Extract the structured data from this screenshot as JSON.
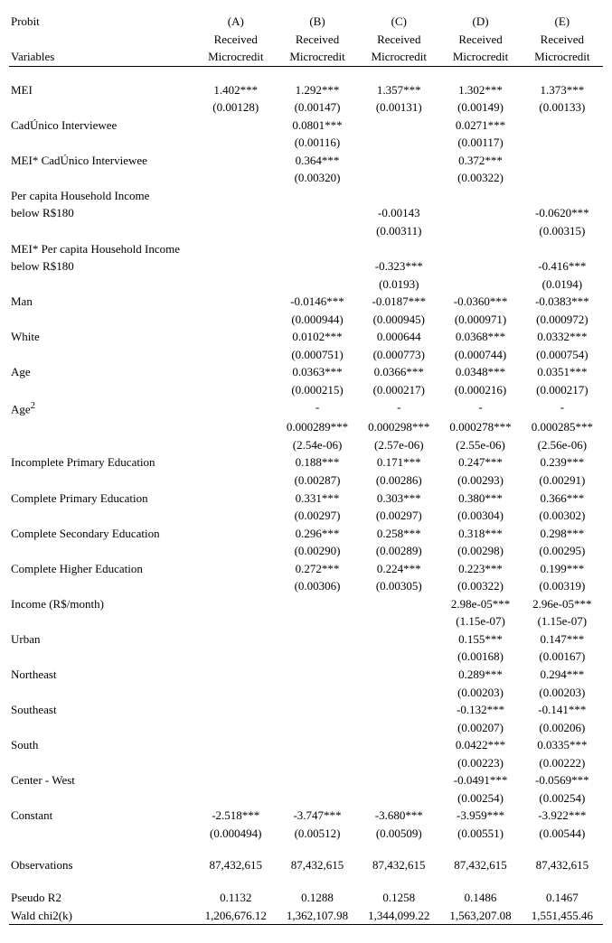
{
  "header": {
    "row1_label": "Probit",
    "row2_label": "Variables",
    "cols": [
      {
        "col_id": "(A)",
        "sub": "Received",
        "sub2": "Microcredit"
      },
      {
        "col_id": "(B)",
        "sub": "Received",
        "sub2": "Microcredit"
      },
      {
        "col_id": "(C)",
        "sub": "Received",
        "sub2": "Microcredit"
      },
      {
        "col_id": "(D)",
        "sub": "Received",
        "sub2": "Microcredit"
      },
      {
        "col_id": "(E)",
        "sub": "Received",
        "sub2": "Microcredit"
      }
    ]
  },
  "rows": [
    {
      "type": "spacer"
    },
    {
      "type": "est",
      "label": "MEI",
      "vals": [
        "1.402***",
        "1.292***",
        "1.357***",
        "1.302***",
        "1.373***"
      ]
    },
    {
      "type": "se",
      "vals": [
        "(0.00128)",
        "(0.00147)",
        "(0.00131)",
        "(0.00149)",
        "(0.00133)"
      ]
    },
    {
      "type": "est",
      "label": "CadÚnico Interviewee",
      "vals": [
        "",
        "0.0801***",
        "",
        "0.0271***",
        ""
      ]
    },
    {
      "type": "se",
      "vals": [
        "",
        "(0.00116)",
        "",
        "(0.00117)",
        ""
      ]
    },
    {
      "type": "est",
      "label": "MEI* CadÚnico Interviewee",
      "vals": [
        "",
        "0.364***",
        "",
        "0.372***",
        ""
      ]
    },
    {
      "type": "se",
      "vals": [
        "",
        "(0.00320)",
        "",
        "(0.00322)",
        ""
      ]
    },
    {
      "type": "lbl2",
      "label": "Per capita Household Income",
      "label2": "below R$180",
      "vals": [
        "",
        "",
        "-0.00143",
        "",
        "-0.0620***"
      ]
    },
    {
      "type": "se",
      "vals": [
        "",
        "",
        "(0.00311)",
        "",
        "(0.00315)"
      ]
    },
    {
      "type": "lbl2",
      "label": "MEI* Per capita Household Income",
      "label2": "below R$180",
      "vals": [
        "",
        "",
        "-0.323***",
        "",
        "-0.416***"
      ]
    },
    {
      "type": "se",
      "vals": [
        "",
        "",
        "(0.0193)",
        "",
        "(0.0194)"
      ]
    },
    {
      "type": "est",
      "label": "Man",
      "vals": [
        "",
        "-0.0146***",
        "-0.0187***",
        "-0.0360***",
        "-0.0383***"
      ]
    },
    {
      "type": "se",
      "vals": [
        "",
        "(0.000944)",
        "(0.000945)",
        "(0.000971)",
        "(0.000972)"
      ]
    },
    {
      "type": "est",
      "label": "White",
      "vals": [
        "",
        "0.0102***",
        "0.000644",
        "0.0368***",
        "0.0332***"
      ]
    },
    {
      "type": "se",
      "vals": [
        "",
        "(0.000751)",
        "(0.000773)",
        "(0.000744)",
        "(0.000754)"
      ]
    },
    {
      "type": "est",
      "label": "Age",
      "vals": [
        "",
        "0.0363***",
        "0.0366***",
        "0.0348***",
        "0.0351***"
      ]
    },
    {
      "type": "se",
      "vals": [
        "",
        "(0.000215)",
        "(0.000217)",
        "(0.000216)",
        "(0.000217)"
      ]
    },
    {
      "type": "negtop",
      "label": "Age²",
      "vals": [
        "",
        "-",
        "-",
        "-",
        "-"
      ]
    },
    {
      "type": "negbot",
      "vals": [
        "",
        "0.000289***",
        "0.000298***",
        "0.000278***",
        "0.000285***"
      ]
    },
    {
      "type": "se",
      "vals": [
        "",
        "(2.54e-06)",
        "(2.57e-06)",
        "(2.55e-06)",
        "(2.56e-06)"
      ]
    },
    {
      "type": "est",
      "label": "Incomplete Primary Education",
      "vals": [
        "",
        "0.188***",
        "0.171***",
        "0.247***",
        "0.239***"
      ]
    },
    {
      "type": "se",
      "vals": [
        "",
        "(0.00287)",
        "(0.00286)",
        "(0.00293)",
        "(0.00291)"
      ]
    },
    {
      "type": "est",
      "label": "Complete Primary Education",
      "vals": [
        "",
        "0.331***",
        "0.303***",
        "0.380***",
        "0.366***"
      ]
    },
    {
      "type": "se",
      "vals": [
        "",
        "(0.00297)",
        "(0.00297)",
        "(0.00304)",
        "(0.00302)"
      ]
    },
    {
      "type": "est",
      "label": "Complete Secondary Education",
      "vals": [
        "",
        "0.296***",
        "0.258***",
        "0.318***",
        "0.298***"
      ]
    },
    {
      "type": "se",
      "vals": [
        "",
        "(0.00290)",
        "(0.00289)",
        "(0.00298)",
        "(0.00295)"
      ]
    },
    {
      "type": "est",
      "label": "Complete Higher Education",
      "vals": [
        "",
        "0.272***",
        "0.224***",
        "0.223***",
        "0.199***"
      ]
    },
    {
      "type": "se",
      "vals": [
        "",
        "(0.00306)",
        "(0.00305)",
        "(0.00322)",
        "(0.00319)"
      ]
    },
    {
      "type": "est",
      "label": "Income (R$/month)",
      "vals": [
        "",
        "",
        "",
        "2.98e-05***",
        "2.96e-05***"
      ]
    },
    {
      "type": "se",
      "vals": [
        "",
        "",
        "",
        "(1.15e-07)",
        "(1.15e-07)"
      ]
    },
    {
      "type": "est",
      "label": "Urban",
      "vals": [
        "",
        "",
        "",
        "0.155***",
        "0.147***"
      ]
    },
    {
      "type": "se",
      "vals": [
        "",
        "",
        "",
        "(0.00168)",
        "(0.00167)"
      ]
    },
    {
      "type": "est",
      "label": "Northeast",
      "vals": [
        "",
        "",
        "",
        "0.289***",
        "0.294***"
      ]
    },
    {
      "type": "se",
      "vals": [
        "",
        "",
        "",
        "(0.00203)",
        "(0.00203)"
      ]
    },
    {
      "type": "est",
      "label": "Southeast",
      "vals": [
        "",
        "",
        "",
        "-0.132***",
        "-0.141***"
      ]
    },
    {
      "type": "se",
      "vals": [
        "",
        "",
        "",
        "(0.00207)",
        "(0.00206)"
      ]
    },
    {
      "type": "est",
      "label": "South",
      "vals": [
        "",
        "",
        "",
        "0.0422***",
        "0.0335***"
      ]
    },
    {
      "type": "se",
      "vals": [
        "",
        "",
        "",
        "(0.00223)",
        "(0.00222)"
      ]
    },
    {
      "type": "est",
      "label": "Center - West",
      "vals": [
        "",
        "",
        "",
        "-0.0491***",
        "-0.0569***"
      ]
    },
    {
      "type": "se",
      "vals": [
        "",
        "",
        "",
        "(0.00254)",
        "(0.00254)"
      ]
    },
    {
      "type": "est",
      "label": "Constant",
      "vals": [
        "-2.518***",
        "-3.747***",
        "-3.680***",
        "-3.959***",
        "-3.922***"
      ]
    },
    {
      "type": "se",
      "vals": [
        "(0.000494)",
        "(0.00512)",
        "(0.00509)",
        "(0.00551)",
        "(0.00544)"
      ]
    },
    {
      "type": "spacer"
    },
    {
      "type": "est",
      "label": "Observations",
      "vals": [
        "87,432,615",
        "87,432,615",
        "87,432,615",
        "87,432,615",
        "87,432,615"
      ]
    },
    {
      "type": "spacer"
    },
    {
      "type": "est",
      "label": "Pseudo R2",
      "vals": [
        "0.1132",
        "0.1288",
        "0.1258",
        "0.1486",
        "0.1467"
      ]
    },
    {
      "type": "estlast",
      "label": " Wald chi2(k)",
      "vals": [
        "1,206,676.12",
        "1,362,107.98",
        "1,344,099.22",
        "1,563,207.08",
        "1,551,455.46"
      ]
    }
  ]
}
